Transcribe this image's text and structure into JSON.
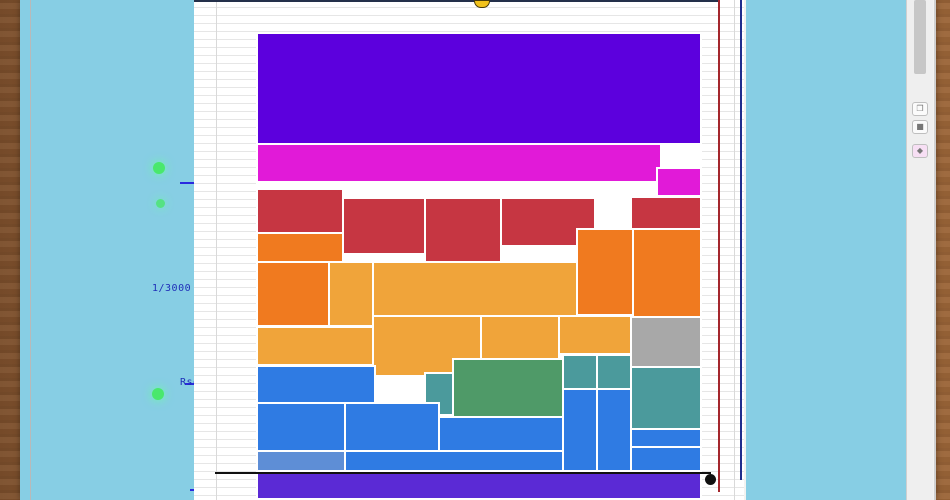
{
  "labels": {
    "upper_marker": "1/3000",
    "lower_marker": "Rso"
  },
  "colors": {
    "panel": "#87cee4",
    "guide": "#2a2adf",
    "rule": "#a4262c",
    "purple": "#5c00dd",
    "magenta": "#e11ad8",
    "red": "#c63642",
    "orange": "#f07a1f",
    "amber": "#f0a43a",
    "gray": "#a8a8a8",
    "teal": "#4b9a9c",
    "green": "#4f9a68",
    "blue": "#2f7be3",
    "violet": "#5b2ad5"
  },
  "icons": {
    "scroll_button_a": "copy-icon",
    "scroll_button_b": "stamp-icon",
    "scroll_button_c": "palette-icon"
  }
}
